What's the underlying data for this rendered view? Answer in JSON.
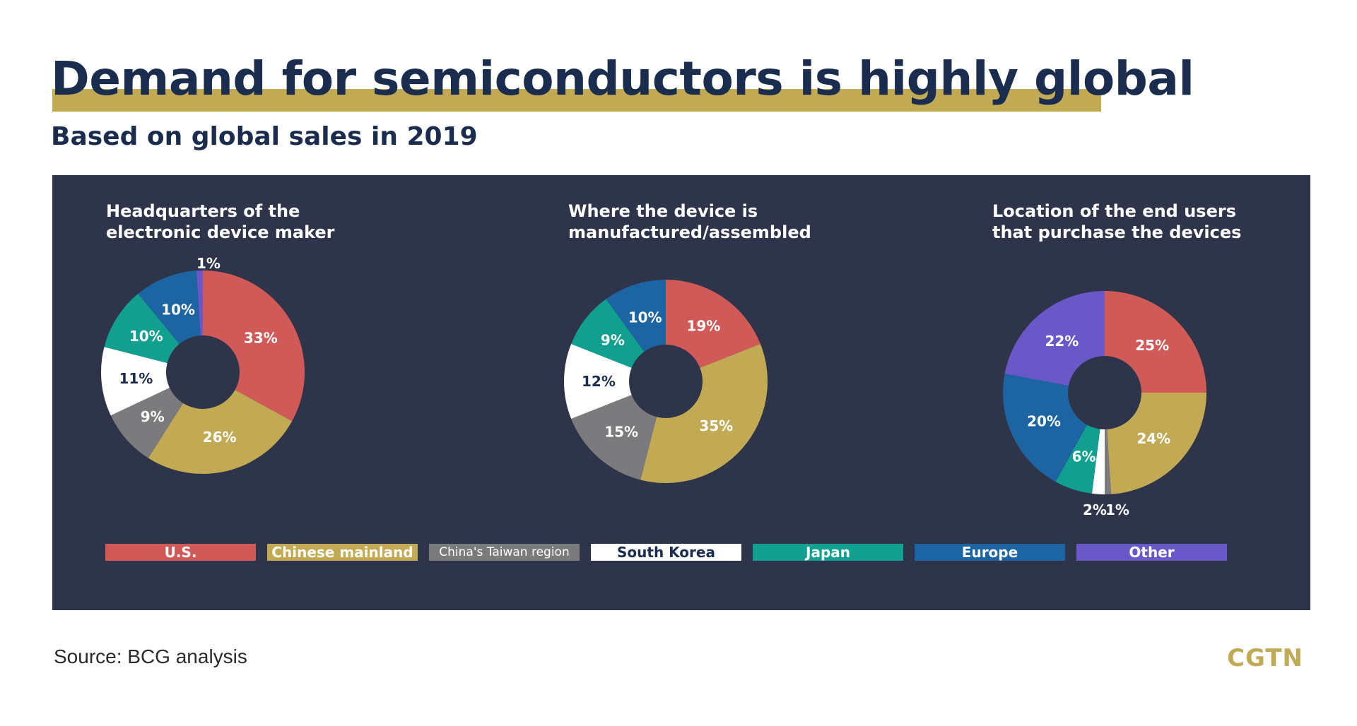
{
  "title": "Demand for semiconductors is highly global",
  "subtitle": "Based on global sales in 2019",
  "source": "Source: BCG analysis",
  "logo": "CGTN",
  "colors": {
    "U.S.": "#d05a57",
    "Chinese mainland": "#c2aa55",
    "China's Taiwan region": "#7b7b7d",
    "South Korea": "#ffffff",
    "Japan": "#11a08f",
    "Europe": "#1c65a2",
    "Other": "#6a58c9",
    "panel": "#2e3449",
    "title": "#1b2d4f"
  },
  "legend": [
    {
      "label": "U.S.",
      "text_color": "#ffffff"
    },
    {
      "label": "Chinese mainland",
      "text_color": "#ffffff"
    },
    {
      "label": "China's Taiwan region",
      "text_color": "#ffffff"
    },
    {
      "label": "South Korea",
      "text_color": "#1b2d4f"
    },
    {
      "label": "Japan",
      "text_color": "#ffffff"
    },
    {
      "label": "Europe",
      "text_color": "#ffffff"
    },
    {
      "label": "Other",
      "text_color": "#ffffff"
    }
  ],
  "chart_data": [
    {
      "type": "pie",
      "title": "Headquarters of the\nelectronic device maker",
      "categories": [
        "U.S.",
        "Chinese mainland",
        "China's Taiwan region",
        "South Korea",
        "Japan",
        "Europe",
        "Other"
      ],
      "values": [
        33,
        26,
        9,
        11,
        10,
        10,
        1
      ],
      "labels": [
        "33%",
        "26%",
        "9%",
        "11%",
        "10%",
        "10%",
        "1%"
      ]
    },
    {
      "type": "pie",
      "title": "Where the device is\nmanufactured/assembled",
      "categories": [
        "U.S.",
        "Chinese mainland",
        "China's Taiwan region",
        "South Korea",
        "Japan",
        "Europe"
      ],
      "values": [
        19,
        35,
        15,
        12,
        9,
        10
      ],
      "labels": [
        "19%",
        "35%",
        "15%",
        "12%",
        "9%",
        "10%"
      ]
    },
    {
      "type": "pie",
      "title": "Location of the end users\nthat purchase the devices",
      "categories": [
        "U.S.",
        "Chinese mainland",
        "China's Taiwan region",
        "South Korea",
        "Japan",
        "Europe",
        "Other"
      ],
      "values": [
        25,
        24,
        1,
        2,
        6,
        20,
        22
      ],
      "labels": [
        "25%",
        "24%",
        "1%",
        "2%",
        "6%",
        "20%",
        "22%"
      ]
    }
  ]
}
